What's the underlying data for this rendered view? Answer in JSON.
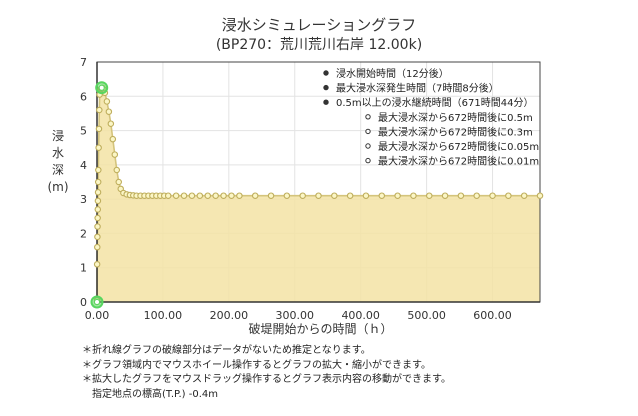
{
  "chart_data": {
    "type": "area",
    "title": "浸水シミュレーショングラフ",
    "subtitle": "(BP270：荒川荒川右岸 12.00k)",
    "ylabel": [
      "浸",
      "水",
      "深",
      "(m)"
    ],
    "xlabel": "破堤開始からの時間（ｈ）",
    "xlim": [
      0,
      672
    ],
    "ylim": [
      0,
      7
    ],
    "x_ticks": [
      0,
      100,
      200,
      300,
      400,
      500,
      600
    ],
    "x_tick_labels": [
      "0.00",
      "100.00",
      "200.00",
      "300.00",
      "400.00",
      "500.00",
      "600.00"
    ],
    "y_ticks": [
      0,
      1,
      2,
      3,
      4,
      5,
      6,
      7
    ],
    "y_tick_labels": [
      "0",
      "1",
      "2",
      "3",
      "4",
      "5",
      "6",
      "7"
    ],
    "grid": true,
    "legend_position": "top-right",
    "series": [
      {
        "x": [
          0,
          0.1,
          0.2,
          0.4,
          0.6,
          0.8,
          1,
          1.2,
          1.4,
          1.6,
          1.8,
          2,
          2.5,
          3,
          3.5,
          4,
          5,
          6,
          7,
          8,
          10,
          12,
          15,
          18,
          21,
          24,
          27,
          30,
          33,
          36,
          40,
          45,
          50,
          55,
          60,
          66,
          72,
          78,
          84,
          90,
          96,
          102,
          108,
          120,
          132,
          144,
          156,
          168,
          180,
          192,
          204,
          216,
          240,
          264,
          288,
          312,
          336,
          360,
          384,
          408,
          432,
          456,
          480,
          504,
          528,
          552,
          576,
          600,
          624,
          648,
          672
        ],
        "y": [
          0,
          0.05,
          1.1,
          1.6,
          1.9,
          2.2,
          2.45,
          2.7,
          2.95,
          3.2,
          3.5,
          3.85,
          4.5,
          5.05,
          5.6,
          6.05,
          6.18,
          6.22,
          6.23,
          6.25,
          6.2,
          6.1,
          5.85,
          5.55,
          5.2,
          4.75,
          4.3,
          3.85,
          3.5,
          3.3,
          3.18,
          3.14,
          3.12,
          3.11,
          3.1,
          3.1,
          3.1,
          3.1,
          3.1,
          3.1,
          3.1,
          3.1,
          3.1,
          3.1,
          3.1,
          3.1,
          3.1,
          3.1,
          3.1,
          3.1,
          3.1,
          3.1,
          3.1,
          3.1,
          3.1,
          3.1,
          3.1,
          3.1,
          3.1,
          3.1,
          3.1,
          3.1,
          3.1,
          3.1,
          3.1,
          3.1,
          3.1,
          3.1,
          3.1,
          3.1,
          3.1
        ]
      }
    ],
    "highlight_points": [
      {
        "x": 0,
        "y": 0
      },
      {
        "x": 7.13,
        "y": 6.25
      }
    ],
    "colors": {
      "line": "#d4c47c",
      "fill": "#f3e3a5",
      "marker_fill": "#fbf6c6",
      "marker_stroke": "#bfae5d",
      "highlight": "#58d65f"
    },
    "legend": [
      {
        "text": "浸水開始時間（12分後）",
        "marker": "filled"
      },
      {
        "text": "最大浸水深発生時間（7時間8分後）",
        "marker": "filled"
      },
      {
        "text": "0.5m以上の浸水継続時間（671時間44分）",
        "marker": "filled"
      },
      {
        "text": "最大浸水深から672時間後に0.5m",
        "marker": "hollow"
      },
      {
        "text": "最大浸水深から672時間後に0.3m",
        "marker": "hollow"
      },
      {
        "text": "最大浸水深から672時間後に0.05m",
        "marker": "hollow"
      },
      {
        "text": "最大浸水深から672時間後に0.01m",
        "marker": "hollow"
      }
    ]
  },
  "notes": [
    "＊折れ線グラフの破線部分はデータがないため推定となります。",
    "＊グラフ領域内でマウスホイール操作するとグラフの拡大・縮小ができます。",
    "＊拡大したグラフをマウスドラッグ操作するとグラフ表示内容の移動ができます。",
    "指定地点の標高(T.P.) -0.4m"
  ]
}
